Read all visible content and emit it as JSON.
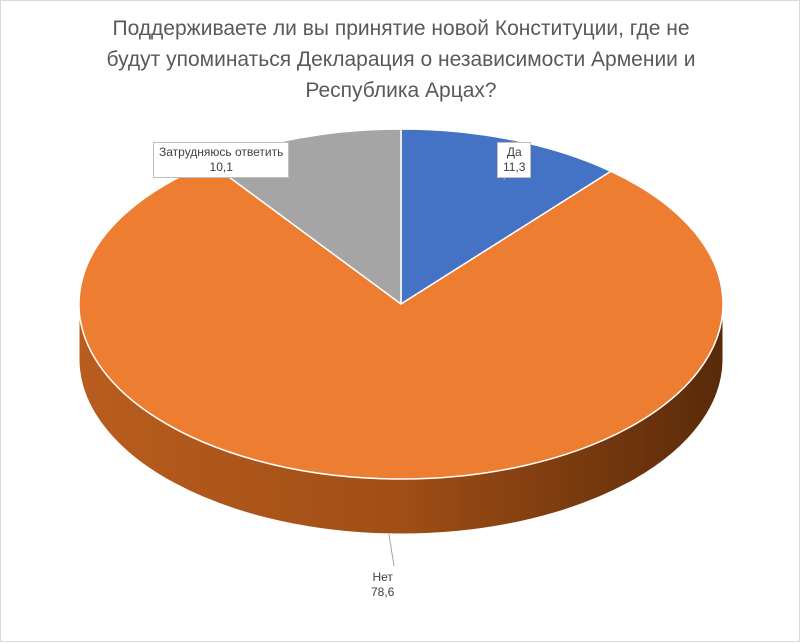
{
  "chart_data": {
    "type": "pie",
    "style": "3d",
    "title_lines": [
      "Поддерживаете ли вы принятие новой Конституции, где не",
      "будут упоминаться Декларация о независимости Армении и",
      "Республика Арцах?"
    ],
    "slices": [
      {
        "name": "Да",
        "value": 11.3,
        "display": "11,3",
        "color": "#4472c4"
      },
      {
        "name": "Нет",
        "value": 78.6,
        "display": "78,6",
        "color": "#ed7d31"
      },
      {
        "name": "Затрудняюсь ответить",
        "value": 10.1,
        "display": "10,1",
        "color": "#a5a5a5"
      }
    ]
  }
}
